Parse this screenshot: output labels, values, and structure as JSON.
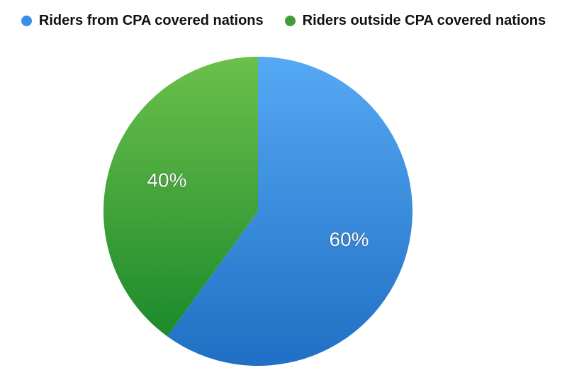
{
  "chart_data": {
    "type": "pie",
    "title": "",
    "legend_position": "top",
    "slices": [
      {
        "name": "Riders from CPA covered nations",
        "value": 60,
        "label": "60%",
        "color": "#3a8ee6"
      },
      {
        "name": "Riders outside CPA covered nations",
        "value": 40,
        "label": "40%",
        "color": "#3f9e3a"
      }
    ]
  },
  "legend": {
    "items": [
      {
        "label": "Riders from CPA covered nations",
        "color": "#3a8ee6"
      },
      {
        "label": "Riders outside CPA covered nations",
        "color": "#3f9e3a"
      }
    ]
  }
}
